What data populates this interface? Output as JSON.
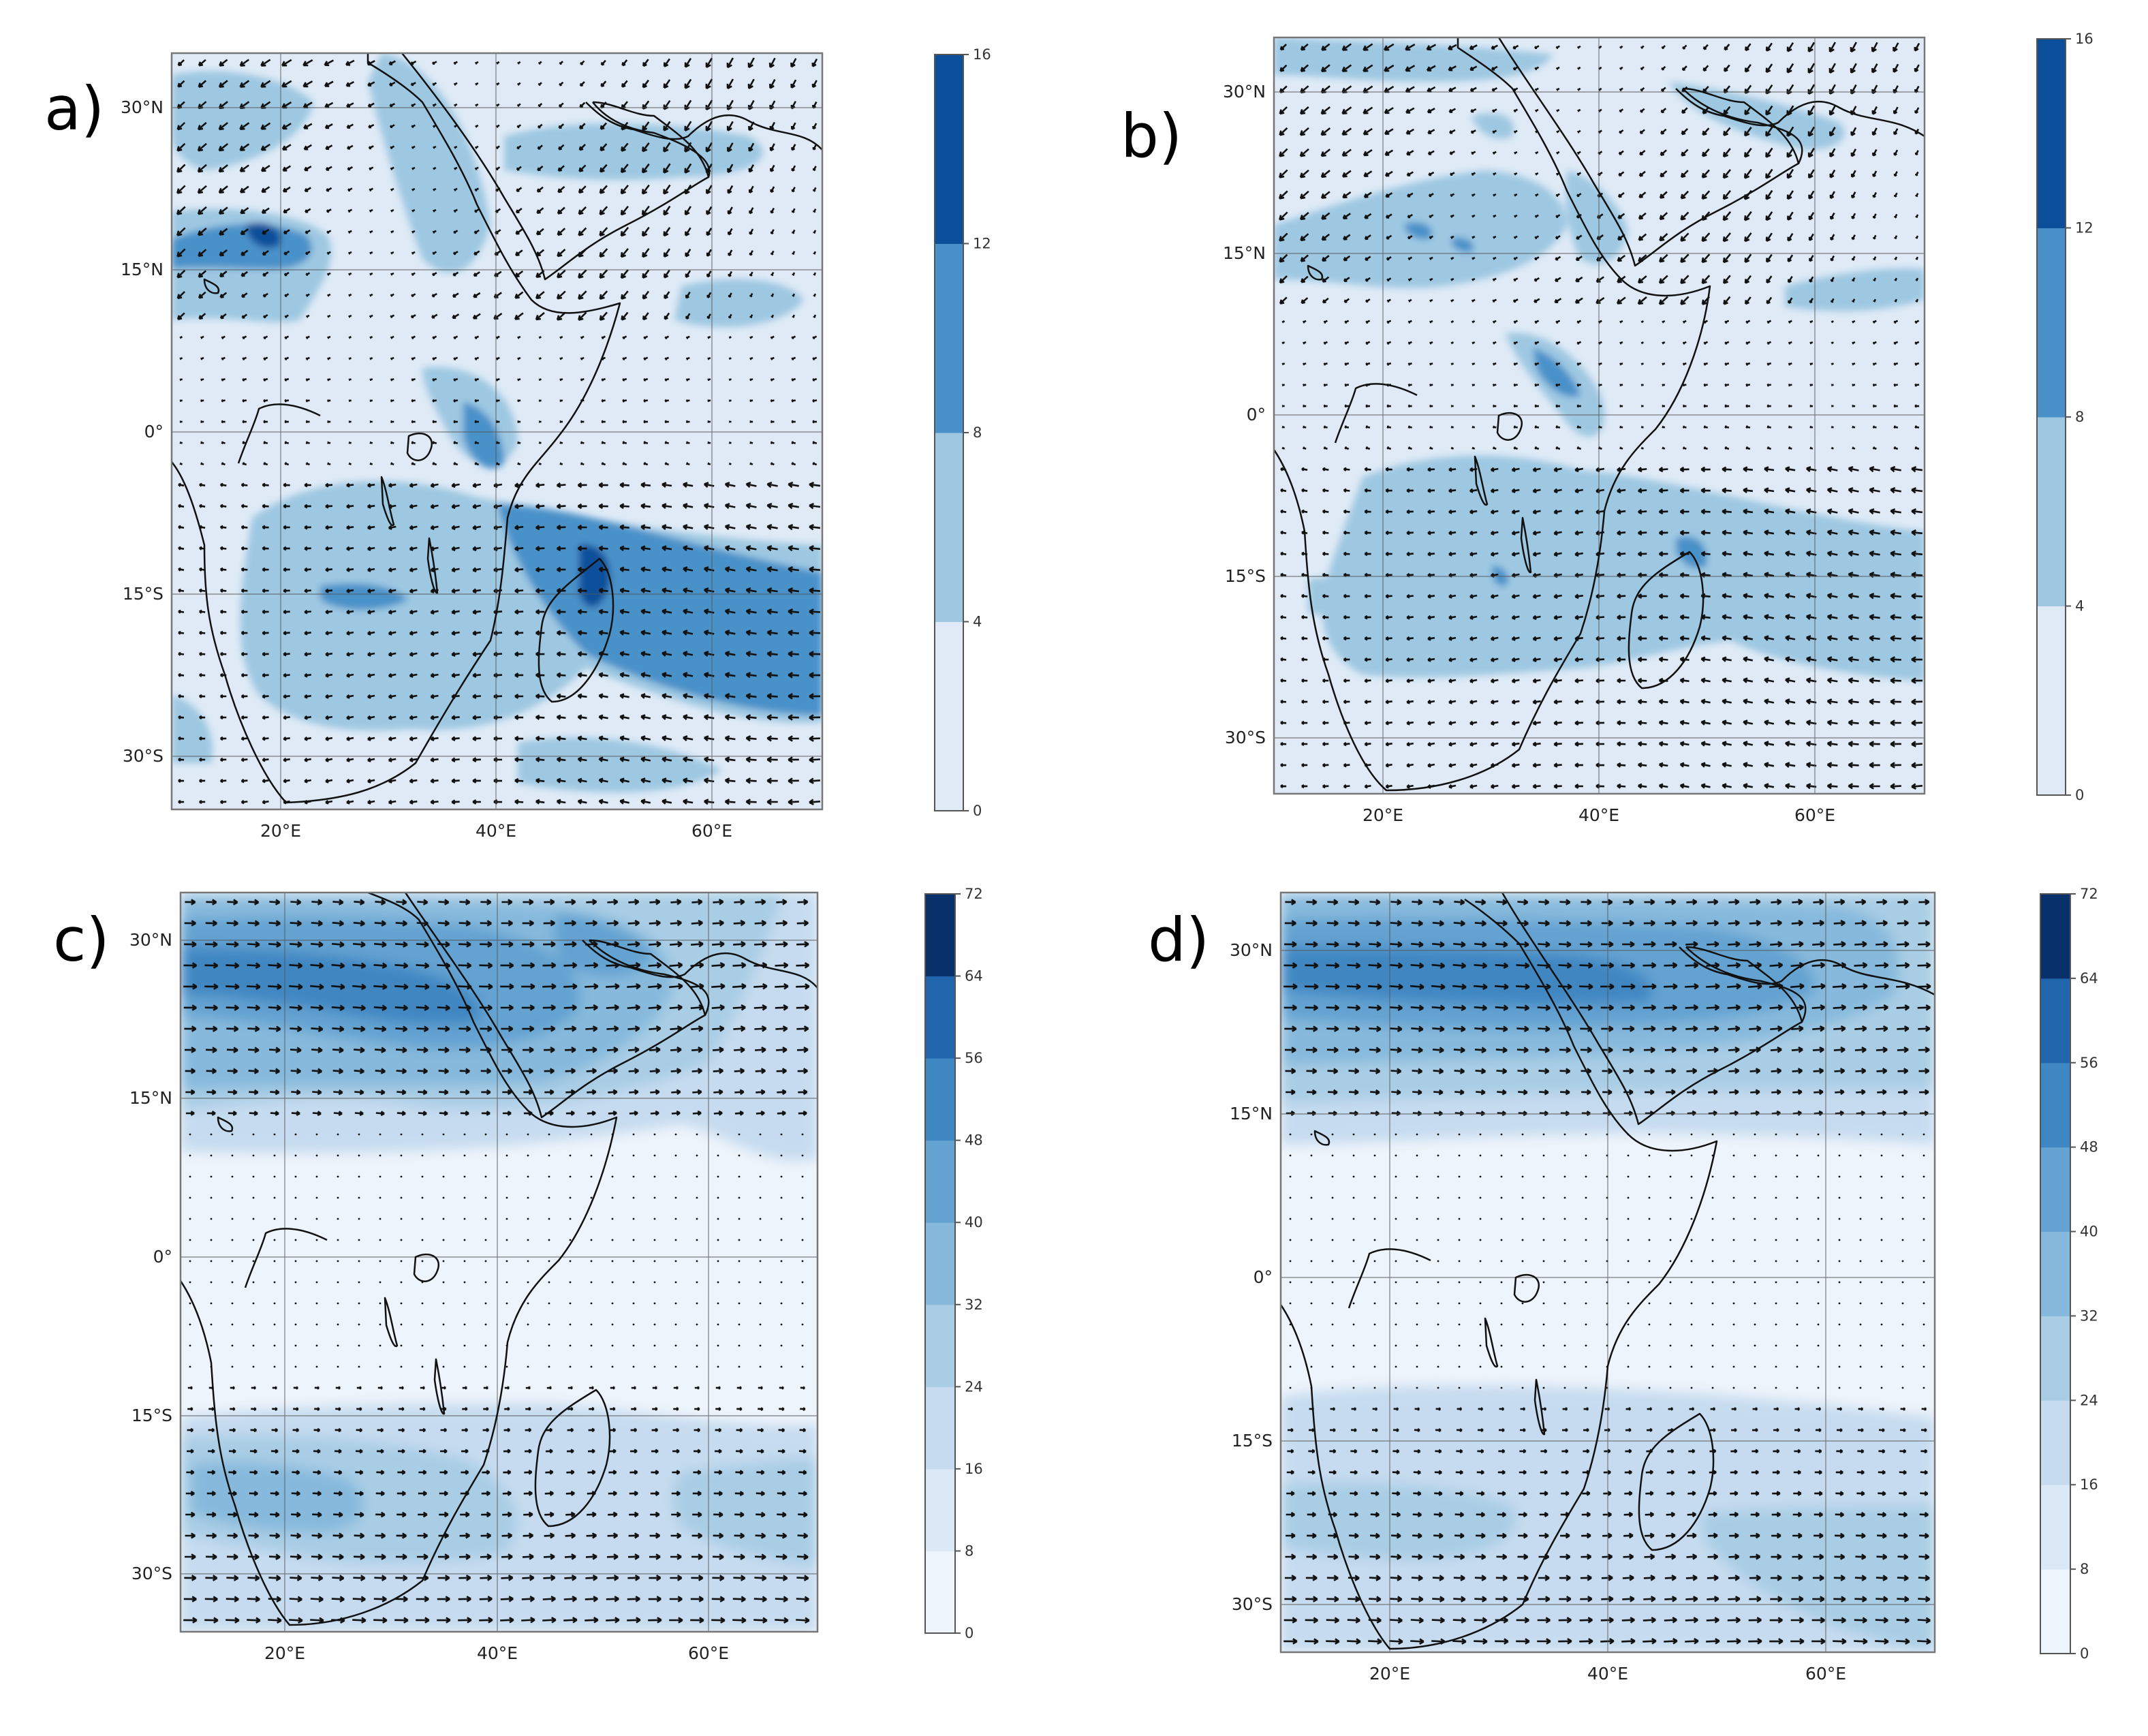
{
  "figure": {
    "panels": [
      {
        "id": "a",
        "letter": "a)",
        "lat_ticks": [
          "30°N",
          "15°N",
          "0°",
          "15°S",
          "30°S"
        ],
        "lon_ticks": [
          "20°E",
          "40°E",
          "60°E"
        ],
        "colorbar": {
          "ticks": [
            "0",
            "4",
            "8",
            "12",
            "16"
          ],
          "colors": [
            "#dfeaf6",
            "#9ec8e2",
            "#4a91c9",
            "#0b4f9a"
          ]
        }
      },
      {
        "id": "b",
        "letter": "b)",
        "lat_ticks": [
          "30°N",
          "15°N",
          "0°",
          "15°S",
          "30°S"
        ],
        "lon_ticks": [
          "20°E",
          "40°E",
          "60°E"
        ],
        "colorbar": {
          "ticks": [
            "0",
            "4",
            "8",
            "12",
            "16"
          ],
          "colors": [
            "#dfeaf6",
            "#9ec8e2",
            "#4a91c9",
            "#0b4f9a"
          ]
        }
      },
      {
        "id": "c",
        "letter": "c)",
        "lat_ticks": [
          "30°N",
          "15°N",
          "0°",
          "15°S",
          "30°S"
        ],
        "lon_ticks": [
          "20°E",
          "40°E",
          "60°E"
        ],
        "colorbar": {
          "ticks": [
            "0",
            "8",
            "16",
            "24",
            "32",
            "40",
            "48",
            "56",
            "64",
            "72"
          ],
          "colors": [
            "#eef4fb",
            "#dbe8f5",
            "#c6dbef",
            "#a9cde5",
            "#86b9dc",
            "#63a2d1",
            "#3f87c2",
            "#2166ac",
            "#08306b"
          ]
        }
      },
      {
        "id": "d",
        "letter": "d)",
        "lat_ticks": [
          "30°N",
          "15°N",
          "0°",
          "15°S",
          "30°S"
        ],
        "lon_ticks": [
          "20°E",
          "40°E",
          "60°E"
        ],
        "colorbar": {
          "ticks": [
            "0",
            "8",
            "16",
            "24",
            "32",
            "40",
            "48",
            "56",
            "64",
            "72"
          ],
          "colors": [
            "#eef4fb",
            "#dbe8f5",
            "#c6dbef",
            "#a9cde5",
            "#86b9dc",
            "#63a2d1",
            "#3f87c2",
            "#2166ac",
            "#08306b"
          ]
        }
      }
    ]
  }
}
